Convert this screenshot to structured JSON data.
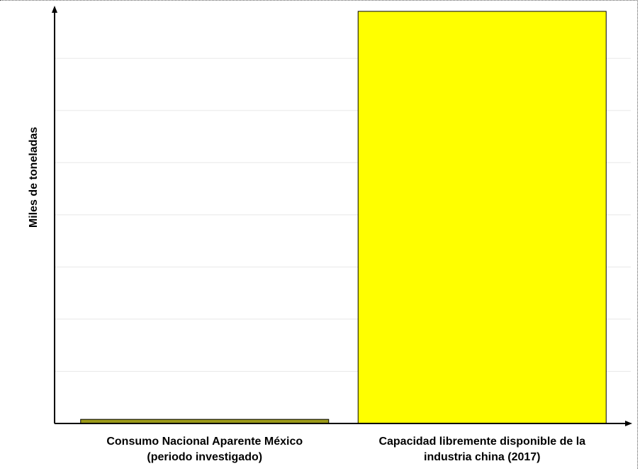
{
  "chart_data": {
    "type": "bar",
    "title": "",
    "xlabel": "",
    "ylabel": "Miles de toneladas",
    "categories": [
      [
        "Consumo Nacional Aparente México",
        "(periodo investigado)"
      ],
      [
        "Capacidad libremente disponible de la",
        "industria china (2017)"
      ]
    ],
    "values": [
      1,
      100
    ],
    "ylim": [
      0,
      100
    ],
    "grid": true,
    "legend": "none",
    "colors": {
      "bar_1": "#9c9a1a",
      "bar_2": "#ffff00",
      "bar_stroke": "#000000",
      "axis": "#000000",
      "grid": "#e8e8e8"
    }
  }
}
